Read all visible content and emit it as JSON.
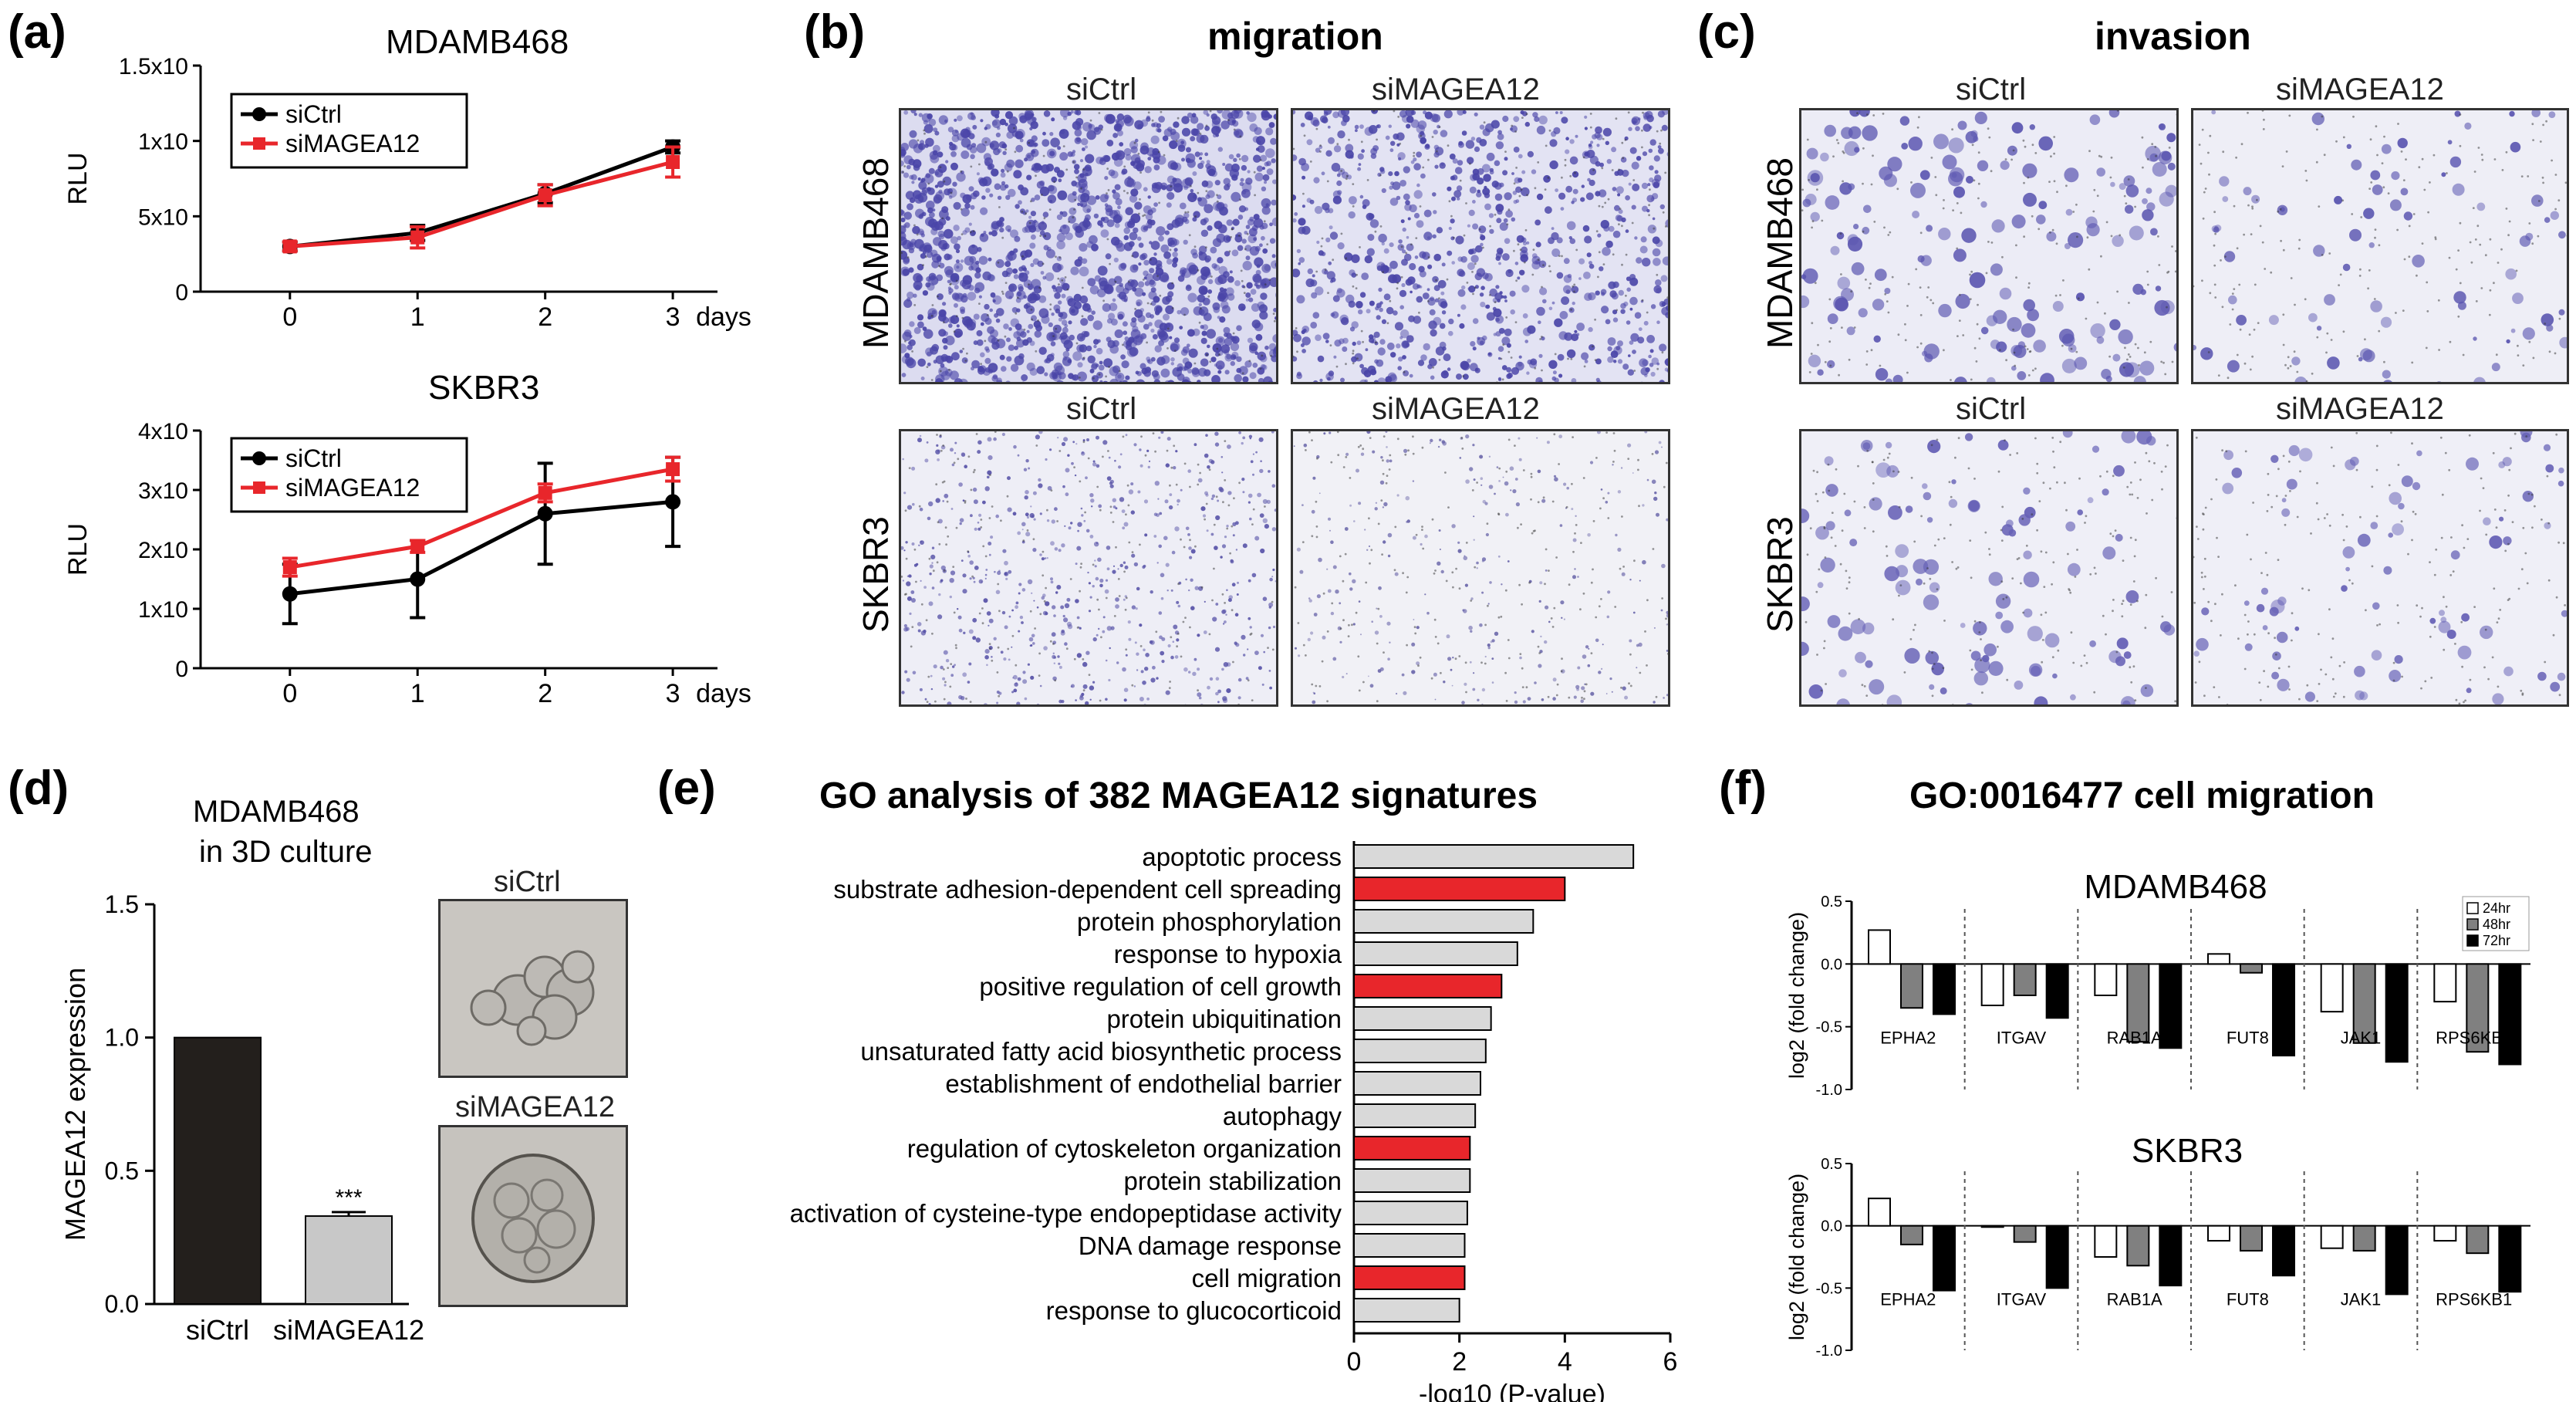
{
  "panels": {
    "a": {
      "label": "(a)",
      "charts": [
        {
          "title": "MDAMB468",
          "type": "line",
          "ylabel": "RLU",
          "xunit": "days",
          "x": [
            0,
            1,
            2,
            3
          ],
          "ytick_labels": [
            "0",
            "5x10",
            "1x10",
            "1.5x10"
          ],
          "ylim": [
            0,
            1.5
          ],
          "series": [
            {
              "name": "siCtrl",
              "color": "#000000",
              "values": [
                0.3,
                0.39,
                0.65,
                0.96
              ],
              "err": [
                0.03,
                0.05,
                0.06,
                0.04
              ]
            },
            {
              "name": "siMAGEA12",
              "color": "#e8262b",
              "values": [
                0.3,
                0.36,
                0.64,
                0.86
              ],
              "err": [
                0.03,
                0.07,
                0.07,
                0.1
              ]
            }
          ]
        },
        {
          "title": "SKBR3",
          "type": "line",
          "ylabel": "RLU",
          "xunit": "days",
          "x": [
            0,
            1,
            2,
            3
          ],
          "ytick_labels": [
            "0",
            "1x10",
            "2x10",
            "3x10",
            "4x10"
          ],
          "ylim": [
            0,
            4
          ],
          "series": [
            {
              "name": "siCtrl",
              "color": "#000000",
              "values": [
                1.25,
                1.5,
                2.6,
                2.8
              ],
              "err": [
                0.5,
                0.65,
                0.85,
                0.75
              ]
            },
            {
              "name": "siMAGEA12",
              "color": "#e8262b",
              "values": [
                1.7,
                2.05,
                2.95,
                3.35
              ],
              "err": [
                0.15,
                0.1,
                0.15,
                0.2
              ]
            }
          ]
        }
      ]
    },
    "b": {
      "label": "(b)",
      "title": "migration",
      "columns": [
        "siCtrl",
        "siMAGEA12"
      ],
      "rows": [
        "MDAMB468",
        "SKBR3"
      ]
    },
    "c": {
      "label": "(c)",
      "title": "invasion",
      "columns": [
        "siCtrl",
        "siMAGEA12"
      ],
      "rows": [
        "MDAMB468",
        "SKBR3"
      ]
    },
    "d": {
      "label": "(d)",
      "title_line1": "MDAMB468",
      "title_line2": "in 3D culture",
      "image_labels": [
        "siCtrl",
        "siMAGEA12"
      ]
    },
    "e": {
      "label": "(e)",
      "title": "GO analysis of 382 MAGEA12 signatures"
    },
    "f": {
      "label": "(f)",
      "title": "GO:0016477 cell migration"
    }
  },
  "chart_data": [
    {
      "panel": "d",
      "type": "bar",
      "categories": [
        "siCtrl",
        "siMAGEA12"
      ],
      "values": [
        1.0,
        0.33
      ],
      "err": [
        0,
        0.015
      ],
      "colors": [
        "#231f1c",
        "#c8c8c8"
      ],
      "ylabel": "MAGEA12 expression",
      "ylim": [
        0,
        1.5
      ],
      "yticks": [
        "0.0",
        "0.5",
        "1.0",
        "1.5"
      ],
      "annotation": "***"
    },
    {
      "panel": "e",
      "type": "bar",
      "orientation": "horizontal",
      "xlabel": "-log10 (P-value)",
      "xlim": [
        0,
        6
      ],
      "xticks": [
        "0",
        "2",
        "4",
        "6"
      ],
      "categories": [
        "apoptotic process",
        "substrate adhesion-dependent cell spreading",
        "protein phosphorylation",
        "response to hypoxia",
        "positive regulation of cell growth",
        "protein ubiquitination",
        "unsaturated fatty acid biosynthetic process",
        "establishment of endothelial barrier",
        "autophagy",
        "regulation of cytoskeleton organization",
        "protein stabilization",
        "activation of cysteine-type endopeptidase activity",
        "DNA damage response",
        "cell migration",
        "response to glucocorticoid"
      ],
      "values": [
        5.3,
        4.0,
        3.4,
        3.1,
        2.8,
        2.6,
        2.5,
        2.4,
        2.3,
        2.2,
        2.2,
        2.15,
        2.1,
        2.1,
        2.0
      ],
      "highlighted": [
        false,
        true,
        false,
        false,
        true,
        false,
        false,
        false,
        false,
        true,
        false,
        false,
        false,
        true,
        false
      ],
      "colors": {
        "normal": "#d9d9d9",
        "highlight": "#e8262b"
      }
    },
    {
      "panel": "f",
      "type": "bar",
      "title": "MDAMB468",
      "ylabel": "log2 (fold change)",
      "ylim": [
        -1.0,
        0.5
      ],
      "yticks": [
        "-1.0",
        "-0.5",
        "0.0",
        "0.5"
      ],
      "categories": [
        "EPHA2",
        "ITGAV",
        "RAB1A",
        "FUT8",
        "JAK1",
        "RPS6KB1"
      ],
      "series": [
        {
          "name": "24hr",
          "color": "#ffffff",
          "values": [
            0.27,
            -0.33,
            -0.25,
            0.08,
            -0.38,
            -0.3
          ]
        },
        {
          "name": "48hr",
          "color": "#808080",
          "values": [
            -0.35,
            -0.25,
            -0.62,
            -0.07,
            -0.63,
            -0.7
          ]
        },
        {
          "name": "72hr",
          "color": "#000000",
          "values": [
            -0.4,
            -0.43,
            -0.67,
            -0.73,
            -0.78,
            -0.8
          ]
        }
      ]
    },
    {
      "panel": "f",
      "type": "bar",
      "title": "SKBR3",
      "ylabel": "log2 (fold change)",
      "ylim": [
        -1.0,
        0.5
      ],
      "yticks": [
        "-1.0",
        "-0.5",
        "0.0",
        "0.5"
      ],
      "categories": [
        "EPHA2",
        "ITGAV",
        "RAB1A",
        "FUT8",
        "JAK1",
        "RPS6KB1"
      ],
      "series": [
        {
          "name": "24hr",
          "color": "#ffffff",
          "values": [
            0.22,
            -0.01,
            -0.25,
            -0.12,
            -0.18,
            -0.12
          ]
        },
        {
          "name": "48hr",
          "color": "#808080",
          "values": [
            -0.15,
            -0.13,
            -0.32,
            -0.2,
            -0.2,
            -0.22
          ]
        },
        {
          "name": "72hr",
          "color": "#000000",
          "values": [
            -0.52,
            -0.5,
            -0.48,
            -0.4,
            -0.55,
            -0.53
          ]
        }
      ]
    }
  ]
}
